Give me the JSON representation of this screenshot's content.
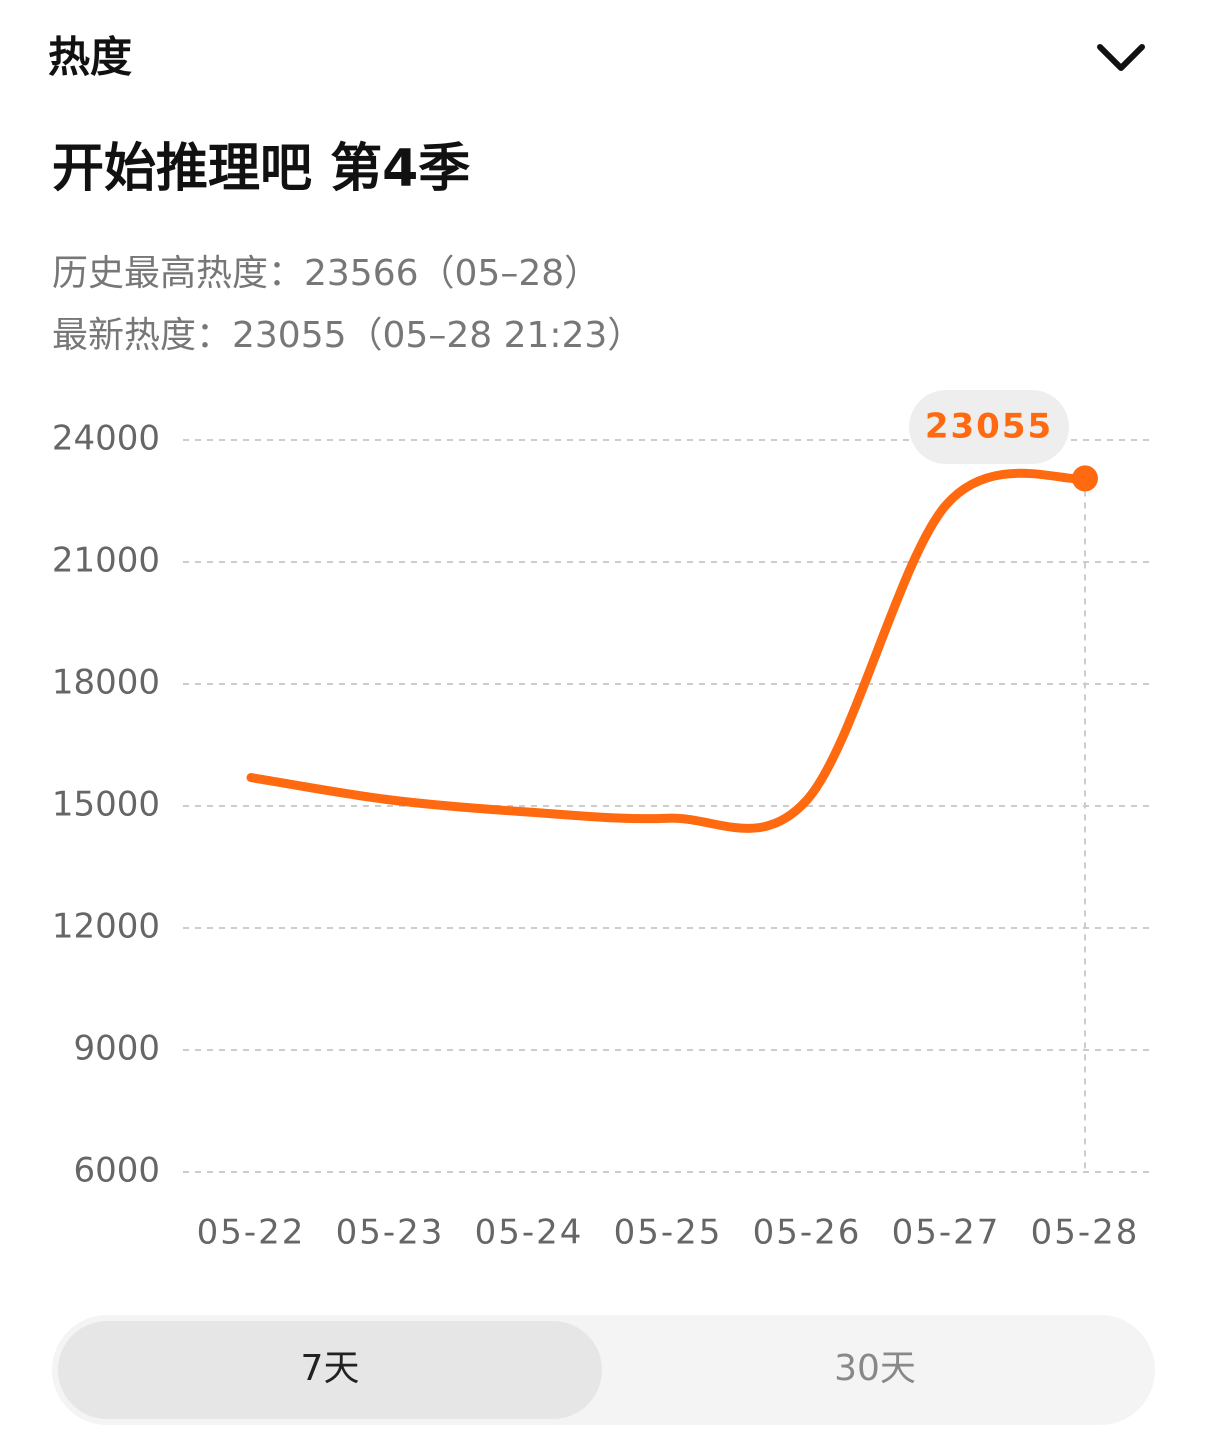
{
  "header": {
    "title": "热度"
  },
  "show_title": "开始推理吧 第4季",
  "stats": {
    "peak": "历史最高热度：23566（05–28）",
    "latest": "最新热度：23055（05–28 21:23）"
  },
  "chart_data": {
    "type": "line",
    "categories": [
      "05-22",
      "05-23",
      "05-24",
      "05-25",
      "05-26",
      "05-27",
      "05-28"
    ],
    "series": [
      {
        "name": "热度",
        "color": "#ff6a10",
        "values": [
          15700,
          15150,
          14850,
          14700,
          15150,
          22400,
          23055
        ]
      }
    ],
    "ylim": [
      6000,
      24000
    ],
    "yticks": [
      6000,
      9000,
      12000,
      15000,
      18000,
      21000,
      24000
    ],
    "grid": true
  },
  "tabs": [
    "7天",
    "30天"
  ]
}
